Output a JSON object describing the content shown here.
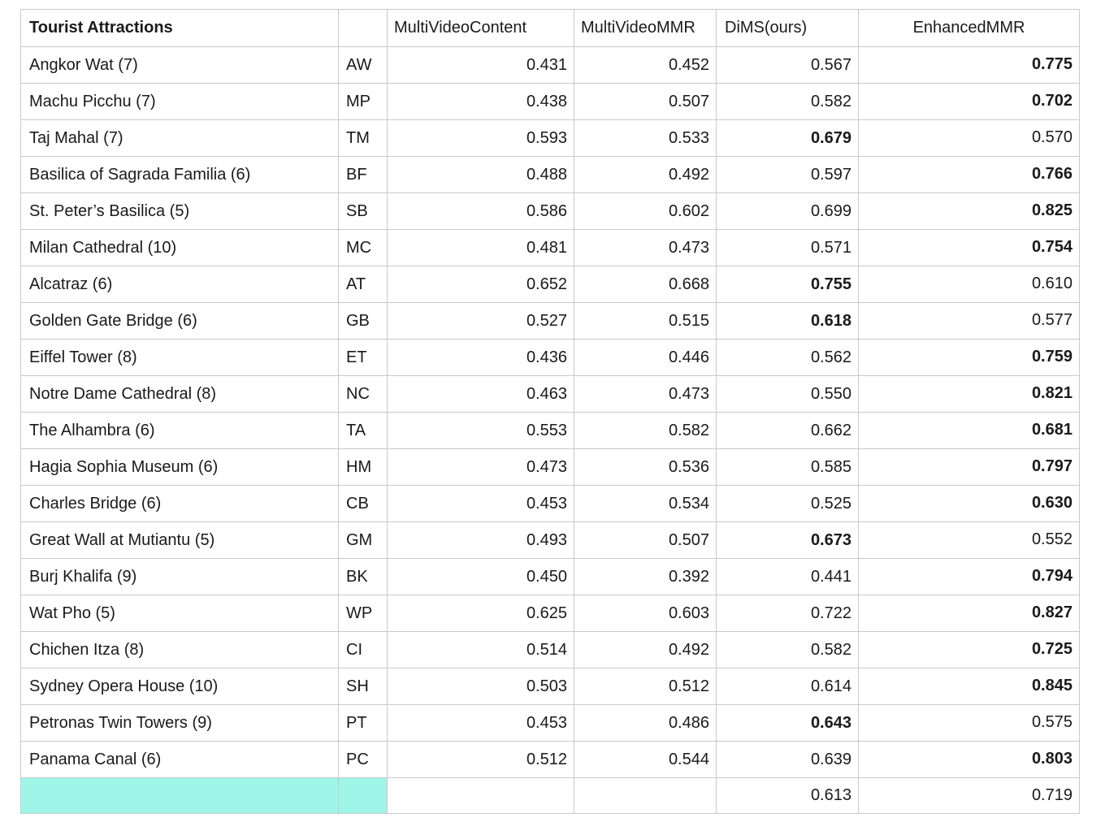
{
  "table": {
    "headers": {
      "name": "Tourist Attractions",
      "abbr": "",
      "mvc": "MultiVideoContent",
      "mvmmr": "MultiVideoMMR",
      "dims": "DiMS(ours)",
      "emmr": "EnhancedMMR"
    },
    "rows": [
      {
        "name": "Angkor Wat (7)",
        "abbr": "AW",
        "mvc": "0.431",
        "mvmmr": "0.452",
        "dims": "0.567",
        "emmr": "0.775",
        "best": "emmr"
      },
      {
        "name": "Machu Picchu (7)",
        "abbr": "MP",
        "mvc": "0.438",
        "mvmmr": "0.507",
        "dims": "0.582",
        "emmr": "0.702",
        "best": "emmr"
      },
      {
        "name": "Taj Mahal (7)",
        "abbr": "TM",
        "mvc": "0.593",
        "mvmmr": "0.533",
        "dims": "0.679",
        "emmr": "0.570",
        "best": "dims"
      },
      {
        "name": "Basilica of Sagrada Familia (6)",
        "abbr": "BF",
        "mvc": "0.488",
        "mvmmr": "0.492",
        "dims": "0.597",
        "emmr": "0.766",
        "best": "emmr"
      },
      {
        "name": "St. Peter’s Basilica (5)",
        "abbr": "SB",
        "mvc": "0.586",
        "mvmmr": "0.602",
        "dims": "0.699",
        "emmr": "0.825",
        "best": "emmr"
      },
      {
        "name": "Milan Cathedral (10)",
        "abbr": "MC",
        "mvc": "0.481",
        "mvmmr": "0.473",
        "dims": "0.571",
        "emmr": "0.754",
        "best": "emmr"
      },
      {
        "name": "Alcatraz (6)",
        "abbr": "AT",
        "mvc": "0.652",
        "mvmmr": "0.668",
        "dims": "0.755",
        "emmr": "0.610",
        "best": "dims"
      },
      {
        "name": "Golden Gate Bridge (6)",
        "abbr": "GB",
        "mvc": "0.527",
        "mvmmr": "0.515",
        "dims": "0.618",
        "emmr": "0.577",
        "best": "dims"
      },
      {
        "name": "Eiffel Tower (8)",
        "abbr": "ET",
        "mvc": "0.436",
        "mvmmr": "0.446",
        "dims": "0.562",
        "emmr": "0.759",
        "best": "emmr"
      },
      {
        "name": "Notre Dame Cathedral (8)",
        "abbr": "NC",
        "mvc": "0.463",
        "mvmmr": "0.473",
        "dims": "0.550",
        "emmr": "0.821",
        "best": "emmr"
      },
      {
        "name": "The Alhambra (6)",
        "abbr": "TA",
        "mvc": "0.553",
        "mvmmr": "0.582",
        "dims": "0.662",
        "emmr": "0.681",
        "best": "emmr"
      },
      {
        "name": "Hagia Sophia Museum (6)",
        "abbr": "HM",
        "mvc": "0.473",
        "mvmmr": "0.536",
        "dims": "0.585",
        "emmr": "0.797",
        "best": "emmr"
      },
      {
        "name": "Charles Bridge (6)",
        "abbr": "CB",
        "mvc": "0.453",
        "mvmmr": "0.534",
        "dims": "0.525",
        "emmr": "0.630",
        "best": "emmr"
      },
      {
        "name": "Great Wall at Mutiantu (5)",
        "abbr": "GM",
        "mvc": "0.493",
        "mvmmr": "0.507",
        "dims": "0.673",
        "emmr": "0.552",
        "best": "dims"
      },
      {
        "name": "Burj Khalifa (9)",
        "abbr": "BK",
        "mvc": "0.450",
        "mvmmr": "0.392",
        "dims": "0.441",
        "emmr": "0.794",
        "best": "emmr"
      },
      {
        "name": "Wat Pho (5)",
        "abbr": "WP",
        "mvc": "0.625",
        "mvmmr": "0.603",
        "dims": "0.722",
        "emmr": "0.827",
        "best": "emmr"
      },
      {
        "name": "Chichen Itza (8)",
        "abbr": "CI",
        "mvc": "0.514",
        "mvmmr": "0.492",
        "dims": "0.582",
        "emmr": "0.725",
        "best": "emmr"
      },
      {
        "name": "Sydney Opera House (10)",
        "abbr": "SH",
        "mvc": "0.503",
        "mvmmr": "0.512",
        "dims": "0.614",
        "emmr": "0.845",
        "best": "emmr"
      },
      {
        "name": "Petronas Twin Towers (9)",
        "abbr": "PT",
        "mvc": "0.453",
        "mvmmr": "0.486",
        "dims": "0.643",
        "emmr": "0.575",
        "best": "dims"
      },
      {
        "name": "Panama Canal (6)",
        "abbr": "PC",
        "mvc": "0.512",
        "mvmmr": "0.544",
        "dims": "0.639",
        "emmr": "0.803",
        "best": "emmr"
      }
    ],
    "footer": {
      "name": "",
      "abbr": "",
      "mvc": "",
      "mvmmr": "",
      "dims": "0.613",
      "emmr": "0.719"
    },
    "colors": {
      "footer_highlight": "#9ff5e8",
      "border": "#c9c9c9"
    }
  }
}
